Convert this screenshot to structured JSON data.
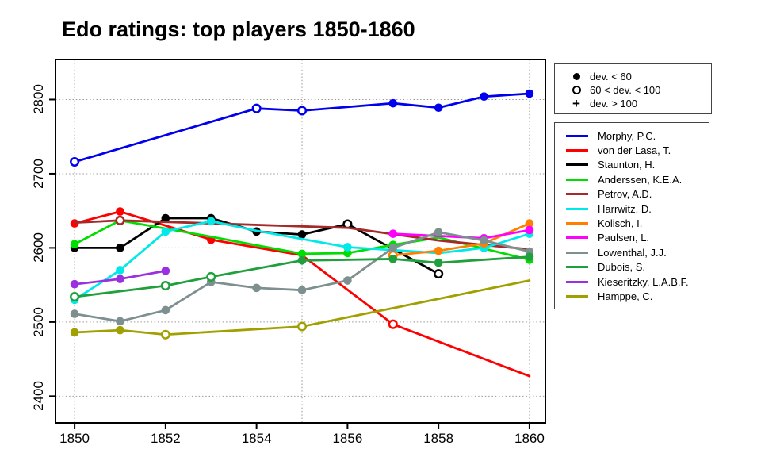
{
  "title": "Edo ratings: top players 1850-1860",
  "marker_legend": {
    "items": [
      {
        "marker": "filled",
        "label": "dev. < 60"
      },
      {
        "marker": "open",
        "label": "60 < dev. < 100"
      },
      {
        "marker": "plus",
        "label": "dev. > 100"
      }
    ]
  },
  "chart_data": {
    "type": "line",
    "title": "Edo ratings: top players 1850-1860",
    "xlabel": "",
    "ylabel": "",
    "x_ticks": [
      1850,
      1852,
      1854,
      1856,
      1858,
      1860
    ],
    "y_ticks": [
      2400,
      2500,
      2600,
      2700,
      2800
    ],
    "xlim": [
      1849.58,
      1860.35
    ],
    "ylim": [
      2364,
      2854
    ],
    "x_gridlines": [
      1850,
      1855,
      1860
    ],
    "y_gridlines": [
      2400,
      2500,
      2600,
      2700,
      2800
    ],
    "grid": "dotted",
    "legend_position": "right",
    "point_format": [
      "year",
      "rating",
      "marker"
    ],
    "marker_codes": {
      "f": "filled circle (dev. < 60)",
      "o": "open circle (60 < dev. < 100)",
      "n": "no visible marker / hidden"
    },
    "series": [
      {
        "name": "Morphy, P.C.",
        "color": "#0000EE",
        "points": [
          [
            1850,
            2716,
            "o"
          ],
          [
            1854,
            2788,
            "o"
          ],
          [
            1855,
            2785,
            "o"
          ],
          [
            1857,
            2795,
            "f"
          ],
          [
            1858,
            2789,
            "f"
          ],
          [
            1859,
            2804,
            "f"
          ],
          [
            1860,
            2808,
            "f"
          ]
        ]
      },
      {
        "name": "von der Lasa, T.",
        "color": "#FF0000",
        "points": [
          [
            1850,
            2633,
            "f"
          ],
          [
            1851,
            2649,
            "f"
          ],
          [
            1853,
            2611,
            "f"
          ],
          [
            1855,
            2590,
            "n"
          ],
          [
            1857,
            2497,
            "o"
          ],
          [
            1860,
            2427,
            "n"
          ]
        ]
      },
      {
        "name": "Staunton, H.",
        "color": "#000000",
        "points": [
          [
            1850,
            2600,
            "f"
          ],
          [
            1851,
            2600,
            "f"
          ],
          [
            1852,
            2640,
            "f"
          ],
          [
            1853,
            2640,
            "f"
          ],
          [
            1854,
            2622,
            "f"
          ],
          [
            1855,
            2618,
            "f"
          ],
          [
            1856,
            2632,
            "o"
          ],
          [
            1858,
            2565,
            "o"
          ]
        ]
      },
      {
        "name": "Anderssen, K.E.A.",
        "color": "#00DD00",
        "points": [
          [
            1850,
            2605,
            "f"
          ],
          [
            1851,
            2637,
            "f"
          ],
          [
            1853,
            2615,
            "n"
          ],
          [
            1855,
            2592,
            "f"
          ],
          [
            1856,
            2593,
            "f"
          ],
          [
            1857,
            2604,
            "f"
          ],
          [
            1858,
            2614,
            "n"
          ],
          [
            1860,
            2584,
            "f"
          ]
        ]
      },
      {
        "name": "Petrov, A.D.",
        "color": "#A52A2A",
        "points": [
          [
            1850,
            2634,
            "n"
          ],
          [
            1851,
            2637,
            "o"
          ],
          [
            1853,
            2633,
            "n"
          ],
          [
            1856,
            2627,
            "n"
          ],
          [
            1858,
            2610,
            "n"
          ],
          [
            1860,
            2598,
            "n"
          ]
        ]
      },
      {
        "name": "Harrwitz, D.",
        "color": "#00E8E8",
        "points": [
          [
            1850,
            2530,
            "f"
          ],
          [
            1851,
            2570,
            "f"
          ],
          [
            1852,
            2622,
            "f"
          ],
          [
            1853,
            2636,
            "f"
          ],
          [
            1854,
            2623,
            "n"
          ],
          [
            1855,
            2612,
            "n"
          ],
          [
            1856,
            2601,
            "f"
          ],
          [
            1857,
            2597,
            "n"
          ],
          [
            1858,
            2593,
            "n"
          ],
          [
            1859,
            2600,
            "f"
          ],
          [
            1860,
            2619,
            "f"
          ]
        ]
      },
      {
        "name": "Kolisch, I.",
        "color": "#FF8000",
        "points": [
          [
            1857,
            2590,
            "o"
          ],
          [
            1858,
            2596,
            "f"
          ],
          [
            1859,
            2606,
            "f"
          ],
          [
            1860,
            2633,
            "f"
          ]
        ]
      },
      {
        "name": "Paulsen, L.",
        "color": "#FF00FF",
        "points": [
          [
            1857,
            2619,
            "f"
          ],
          [
            1858,
            2616,
            "n"
          ],
          [
            1859,
            2613,
            "f"
          ],
          [
            1860,
            2624,
            "f"
          ]
        ]
      },
      {
        "name": "Lowenthal, J.J.",
        "color": "#7E8F8F",
        "points": [
          [
            1850,
            2511,
            "f"
          ],
          [
            1851,
            2501,
            "f"
          ],
          [
            1852,
            2516,
            "f"
          ],
          [
            1853,
            2554,
            "f"
          ],
          [
            1854,
            2546,
            "f"
          ],
          [
            1855,
            2543,
            "f"
          ],
          [
            1856,
            2556,
            "f"
          ],
          [
            1857,
            2600,
            "f"
          ],
          [
            1858,
            2621,
            "f"
          ],
          [
            1859,
            2610,
            "f"
          ],
          [
            1860,
            2595,
            "f"
          ]
        ]
      },
      {
        "name": "Dubois, S.",
        "color": "#1FA03C",
        "points": [
          [
            1850,
            2534,
            "o"
          ],
          [
            1852,
            2549,
            "o"
          ],
          [
            1853,
            2561,
            "o"
          ],
          [
            1855,
            2583,
            "f"
          ],
          [
            1857,
            2585,
            "f"
          ],
          [
            1858,
            2580,
            "f"
          ],
          [
            1860,
            2588,
            "f"
          ]
        ]
      },
      {
        "name": "Kieseritzky, L.A.B.F.",
        "color": "#9B30E0",
        "points": [
          [
            1850,
            2551,
            "f"
          ],
          [
            1851,
            2558,
            "f"
          ],
          [
            1852,
            2569,
            "f"
          ]
        ]
      },
      {
        "name": "Hamppe, C.",
        "color": "#A0A000",
        "points": [
          [
            1850,
            2486,
            "f"
          ],
          [
            1851,
            2489,
            "f"
          ],
          [
            1852,
            2483,
            "o"
          ],
          [
            1855,
            2494,
            "o"
          ],
          [
            1860,
            2556,
            "n"
          ]
        ]
      }
    ]
  }
}
